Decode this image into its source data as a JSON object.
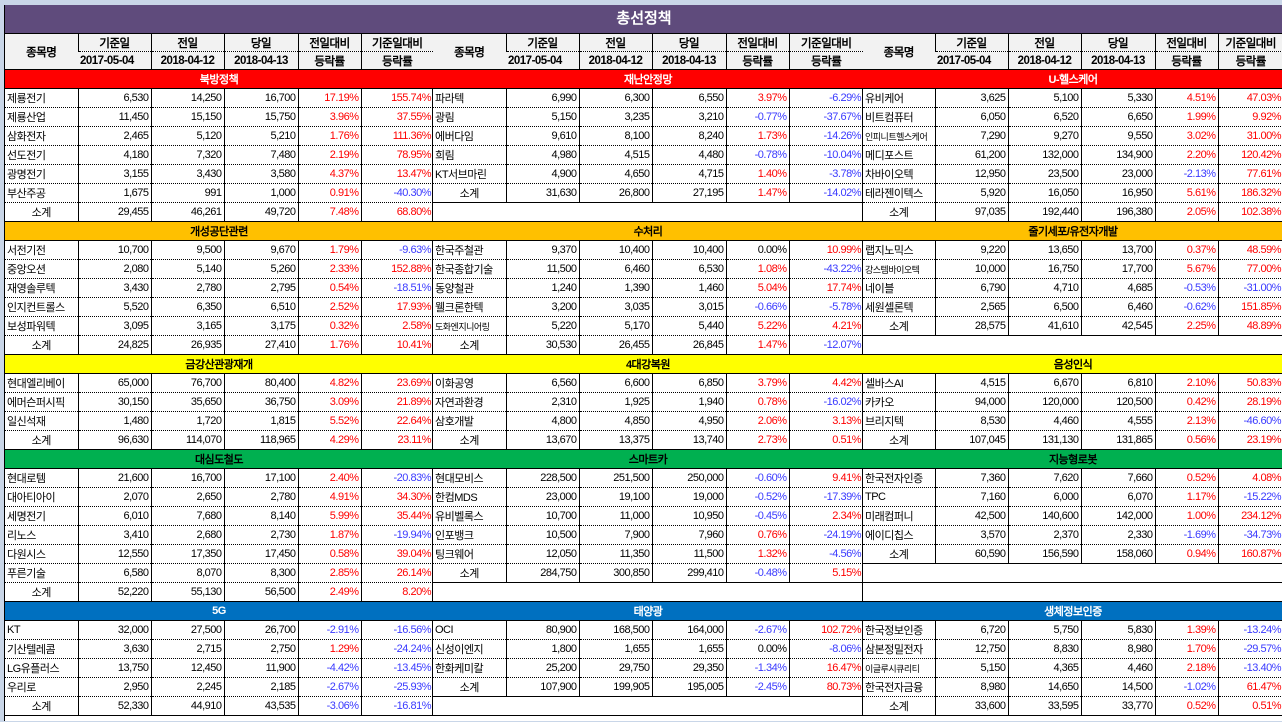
{
  "title": "총선정책",
  "headers": {
    "name": "종목명",
    "base": "기준일",
    "base_date": "2017-05-04",
    "prev": "전일",
    "prev_date": "2018-04-12",
    "today": "당일",
    "today_date": "2018-04-13",
    "dod": "전일대비",
    "dod_sub": "등락률",
    "since": "기준일대비",
    "since_sub": "등락률"
  },
  "section_colors": {
    "red": "#ff0000",
    "orange": "#ffc000",
    "yellow": "#ffff00",
    "green": "#00b050",
    "blue": "#0070c0"
  },
  "value_colors": {
    "up": "#ff0000",
    "down": "#3a3aff"
  },
  "groups": [
    {
      "sections": [
        {
          "title": "북방정책",
          "color": "red",
          "rows": [
            [
              "제룡전기",
              "6,530",
              "14,250",
              "16,700",
              "17.19%",
              "155.74%"
            ],
            [
              "제룡산업",
              "11,450",
              "15,150",
              "15,750",
              "3.96%",
              "37.55%"
            ],
            [
              "삼화전자",
              "2,465",
              "5,120",
              "5,210",
              "1.76%",
              "111.36%"
            ],
            [
              "선도전기",
              "4,180",
              "7,320",
              "7,480",
              "2.19%",
              "78.95%"
            ],
            [
              "광명전기",
              "3,155",
              "3,430",
              "3,580",
              "4.37%",
              "13.47%"
            ],
            [
              "부산주공",
              "1,675",
              "991",
              "1,000",
              "0.91%",
              "-40.30%"
            ]
          ],
          "subtotal": [
            "소계",
            "29,455",
            "46,261",
            "49,720",
            "7.48%",
            "68.80%"
          ]
        },
        {
          "title": "개성공단관련",
          "color": "orange",
          "rows": [
            [
              "서전기전",
              "10,700",
              "9,500",
              "9,670",
              "1.79%",
              "-9.63%"
            ],
            [
              "중앙오션",
              "2,080",
              "5,140",
              "5,260",
              "2.33%",
              "152.88%"
            ],
            [
              "재영솔루텍",
              "3,430",
              "2,780",
              "2,795",
              "0.54%",
              "-18.51%"
            ],
            [
              "인지컨트롤스",
              "5,520",
              "6,350",
              "6,510",
              "2.52%",
              "17.93%"
            ],
            [
              "보성파워텍",
              "3,095",
              "3,165",
              "3,175",
              "0.32%",
              "2.58%"
            ]
          ],
          "subtotal": [
            "소계",
            "24,825",
            "26,935",
            "27,410",
            "1.76%",
            "10.41%"
          ]
        },
        {
          "title": "금강산관광재개",
          "color": "yellow",
          "rows": [
            [
              "현대엘리베이",
              "65,000",
              "76,700",
              "80,400",
              "4.82%",
              "23.69%"
            ],
            [
              "에머슨퍼시픽",
              "30,150",
              "35,650",
              "36,750",
              "3.09%",
              "21.89%"
            ],
            [
              "일신석재",
              "1,480",
              "1,720",
              "1,815",
              "5.52%",
              "22.64%"
            ]
          ],
          "subtotal": [
            "소계",
            "96,630",
            "114,070",
            "118,965",
            "4.29%",
            "23.11%"
          ]
        },
        {
          "title": "대심도철도",
          "color": "green",
          "rows": [
            [
              "현대로템",
              "21,600",
              "16,700",
              "17,100",
              "2.40%",
              "-20.83%"
            ],
            [
              "대아티아이",
              "2,070",
              "2,650",
              "2,780",
              "4.91%",
              "34.30%"
            ],
            [
              "세명전기",
              "6,010",
              "7,680",
              "8,140",
              "5.99%",
              "35.44%"
            ],
            [
              "리노스",
              "3,410",
              "2,680",
              "2,730",
              "1.87%",
              "-19.94%"
            ],
            [
              "다원시스",
              "12,550",
              "17,350",
              "17,450",
              "0.58%",
              "39.04%"
            ],
            [
              "푸른기술",
              "6,580",
              "8,070",
              "8,300",
              "2.85%",
              "26.14%"
            ]
          ],
          "subtotal": [
            "소계",
            "52,220",
            "55,130",
            "56,500",
            "2.49%",
            "8.20%"
          ]
        },
        {
          "title": "5G",
          "color": "blue",
          "rows": [
            [
              "KT",
              "32,000",
              "27,500",
              "26,700",
              "-2.91%",
              "-16.56%"
            ],
            [
              "기산텔레콤",
              "3,630",
              "2,715",
              "2,750",
              "1.29%",
              "-24.24%"
            ],
            [
              "LG유플러스",
              "13,750",
              "12,450",
              "11,900",
              "-4.42%",
              "-13.45%"
            ],
            [
              "우리로",
              "2,950",
              "2,245",
              "2,185",
              "-2.67%",
              "-25.93%"
            ]
          ],
          "subtotal": [
            "소계",
            "52,330",
            "44,910",
            "43,535",
            "-3.06%",
            "-16.81%"
          ]
        }
      ]
    },
    {
      "sections": [
        {
          "title": "재난안정망",
          "color": "red",
          "rows": [
            [
              "파라텍",
              "6,990",
              "6,300",
              "6,550",
              "3.97%",
              "-6.29%"
            ],
            [
              "광림",
              "5,150",
              "3,235",
              "3,210",
              "-0.77%",
              "-37.67%"
            ],
            [
              "에버다임",
              "9,610",
              "8,100",
              "8,240",
              "1.73%",
              "-14.26%"
            ],
            [
              "희림",
              "4,980",
              "4,515",
              "4,480",
              "-0.78%",
              "-10.04%"
            ],
            [
              "KT서브마린",
              "4,900",
              "4,650",
              "4,715",
              "1.40%",
              "-3.78%"
            ]
          ],
          "subtotal": [
            "소계",
            "31,630",
            "26,800",
            "27,195",
            "1.47%",
            "-14.02%"
          ]
        },
        {
          "title": "수처리",
          "color": "orange",
          "rows": [
            [
              "한국주철관",
              "9,370",
              "10,400",
              "10,400",
              "0.00%",
              "10.99%"
            ],
            [
              "한국종합기술",
              "11,500",
              "6,460",
              "6,530",
              "1.08%",
              "-43.22%"
            ],
            [
              "동양철관",
              "1,240",
              "1,390",
              "1,460",
              "5.04%",
              "17.74%"
            ],
            [
              "웰크론한텍",
              "3,200",
              "3,035",
              "3,015",
              "-0.66%",
              "-5.78%"
            ],
            [
              "도화엔지니어링",
              "5,220",
              "5,170",
              "5,440",
              "5.22%",
              "4.21%"
            ]
          ],
          "subtotal": [
            "소계",
            "30,530",
            "26,455",
            "26,845",
            "1.47%",
            "-12.07%"
          ]
        },
        {
          "title": "4대강복원",
          "color": "yellow",
          "rows": [
            [
              "이화공영",
              "6,560",
              "6,600",
              "6,850",
              "3.79%",
              "4.42%"
            ],
            [
              "자연과환경",
              "2,310",
              "1,925",
              "1,940",
              "0.78%",
              "-16.02%"
            ],
            [
              "삼호개발",
              "4,800",
              "4,850",
              "4,950",
              "2.06%",
              "3.13%"
            ]
          ],
          "subtotal": [
            "소계",
            "13,670",
            "13,375",
            "13,740",
            "2.73%",
            "0.51%"
          ]
        },
        {
          "title": "스마트카",
          "color": "green",
          "rows": [
            [
              "현대모비스",
              "228,500",
              "251,500",
              "250,000",
              "-0.60%",
              "9.41%"
            ],
            [
              "한컴MDS",
              "23,000",
              "19,100",
              "19,000",
              "-0.52%",
              "-17.39%"
            ],
            [
              "유비벨록스",
              "10,700",
              "11,000",
              "10,950",
              "-0.45%",
              "2.34%"
            ],
            [
              "인포뱅크",
              "10,500",
              "7,900",
              "7,960",
              "0.76%",
              "-24.19%"
            ],
            [
              "팅크웨어",
              "12,050",
              "11,350",
              "11,500",
              "1.32%",
              "-4.56%"
            ]
          ],
          "subtotal": [
            "소계",
            "284,750",
            "300,850",
            "299,410",
            "-0.48%",
            "5.15%"
          ]
        },
        {
          "title": "태양광",
          "color": "blue",
          "rows": [
            [
              "OCI",
              "80,900",
              "168,500",
              "164,000",
              "-2.67%",
              "102.72%"
            ],
            [
              "신성이엔지",
              "1,800",
              "1,655",
              "1,655",
              "0.00%",
              "-8.06%"
            ],
            [
              "한화케미칼",
              "25,200",
              "29,750",
              "29,350",
              "-1.34%",
              "16.47%"
            ]
          ],
          "subtotal": [
            "소계",
            "107,900",
            "199,905",
            "195,005",
            "-2.45%",
            "80.73%"
          ]
        }
      ]
    },
    {
      "sections": [
        {
          "title": "U-헬스케어",
          "color": "red",
          "rows": [
            [
              "유비케어",
              "3,625",
              "5,100",
              "5,330",
              "4.51%",
              "47.03%"
            ],
            [
              "비트컴퓨터",
              "6,050",
              "6,520",
              "6,650",
              "1.99%",
              "9.92%"
            ],
            [
              "인피니트헬스케어",
              "7,290",
              "9,270",
              "9,550",
              "3.02%",
              "31.00%"
            ],
            [
              "메디포스트",
              "61,200",
              "132,000",
              "134,900",
              "2.20%",
              "120.42%"
            ],
            [
              "차바이오텍",
              "12,950",
              "23,500",
              "23,000",
              "-2.13%",
              "77.61%"
            ],
            [
              "테라젠이텍스",
              "5,920",
              "16,050",
              "16,950",
              "5.61%",
              "186.32%"
            ]
          ],
          "subtotal": [
            "소계",
            "97,035",
            "192,440",
            "196,380",
            "2.05%",
            "102.38%"
          ]
        },
        {
          "title": "줄기세포/유전자개발",
          "color": "orange",
          "rows": [
            [
              "랩지노믹스",
              "9,220",
              "13,650",
              "13,700",
              "0.37%",
              "48.59%"
            ],
            [
              "강스템바이오텍",
              "10,000",
              "16,750",
              "17,700",
              "5.67%",
              "77.00%"
            ],
            [
              "네이블",
              "6,790",
              "4,710",
              "4,685",
              "-0.53%",
              "-31.00%"
            ],
            [
              "세원셀론텍",
              "2,565",
              "6,500",
              "6,460",
              "-0.62%",
              "151.85%"
            ]
          ],
          "subtotal": [
            "소계",
            "28,575",
            "41,610",
            "42,545",
            "2.25%",
            "48.89%"
          ]
        },
        {
          "title": "음성인식",
          "color": "yellow",
          "rows": [
            [
              "셀바스AI",
              "4,515",
              "6,670",
              "6,810",
              "2.10%",
              "50.83%"
            ],
            [
              "카카오",
              "94,000",
              "120,000",
              "120,500",
              "0.42%",
              "28.19%"
            ],
            [
              "브리지텍",
              "8,530",
              "4,460",
              "4,555",
              "2.13%",
              "-46.60%"
            ]
          ],
          "subtotal": [
            "소계",
            "107,045",
            "131,130",
            "131,865",
            "0.56%",
            "23.19%"
          ]
        },
        {
          "title": "지능형로봇",
          "color": "green",
          "rows": [
            [
              "한국전자인증",
              "7,360",
              "7,620",
              "7,660",
              "0.52%",
              "4.08%"
            ],
            [
              "TPC",
              "7,160",
              "6,000",
              "6,070",
              "1.17%",
              "-15.22%"
            ],
            [
              "미래컴퍼니",
              "42,500",
              "140,600",
              "142,000",
              "1.00%",
              "234.12%"
            ],
            [
              "에이디칩스",
              "3,570",
              "2,370",
              "2,330",
              "-1.69%",
              "-34.73%"
            ]
          ],
          "subtotal": [
            "소계",
            "60,590",
            "156,590",
            "158,060",
            "0.94%",
            "160.87%"
          ]
        },
        {
          "title": "생체정보인증",
          "color": "blue",
          "rows": [
            [
              "한국정보인증",
              "6,720",
              "5,750",
              "5,830",
              "1.39%",
              "-13.24%"
            ],
            [
              "삼본정밀전자",
              "12,750",
              "8,830",
              "8,980",
              "1.70%",
              "-29.57%"
            ],
            [
              "이글루시큐리티",
              "5,150",
              "4,365",
              "4,460",
              "2.18%",
              "-13.40%"
            ],
            [
              "한국전자금융",
              "8,980",
              "14,650",
              "14,500",
              "-1.02%",
              "61.47%"
            ]
          ],
          "subtotal": [
            "소계",
            "33,600",
            "33,595",
            "33,770",
            "0.52%",
            "0.51%"
          ]
        }
      ]
    }
  ]
}
